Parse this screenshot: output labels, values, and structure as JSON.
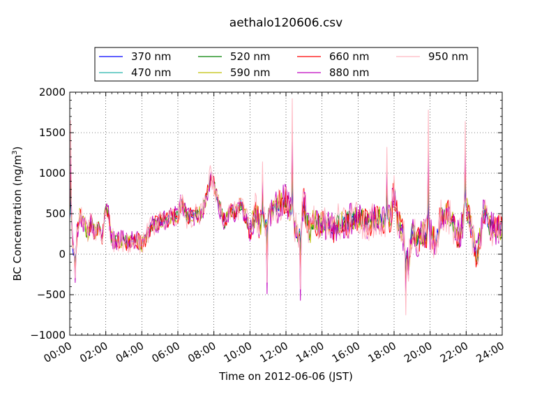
{
  "chart_data": {
    "type": "line",
    "title": "aethalo120606.csv",
    "xlabel": "Time on 2012-06-06 (JST)",
    "ylabel_main": "BC Concentration (ng/m",
    "ylabel_sup": "3",
    "ylabel_end": ")",
    "x_range": [
      "00:00",
      "24:00"
    ],
    "xlim_hours": [
      0,
      24
    ],
    "ylim": [
      -1000,
      2000
    ],
    "x_ticks": [
      "00:00",
      "02:00",
      "04:00",
      "06:00",
      "08:00",
      "10:00",
      "12:00",
      "14:00",
      "16:00",
      "18:00",
      "20:00",
      "22:00",
      "24:00"
    ],
    "y_ticks": [
      -1000,
      -500,
      0,
      500,
      1000,
      1500,
      2000
    ],
    "y_tick_labels": [
      "−1000",
      "−500",
      "0",
      "500",
      "1000",
      "1500",
      "2000"
    ],
    "grid": true,
    "legend_position": "top-center, above plot",
    "series": [
      {
        "name": "370 nm",
        "color": "#0000ff"
      },
      {
        "name": "470 nm",
        "color": "#20b2aa"
      },
      {
        "name": "520 nm",
        "color": "#008000"
      },
      {
        "name": "590 nm",
        "color": "#bfbf00"
      },
      {
        "name": "660 nm",
        "color": "#ff0000"
      },
      {
        "name": "880 nm",
        "color": "#bf00bf"
      },
      {
        "name": "950 nm",
        "color": "#ffb6c1"
      }
    ],
    "base_profile": {
      "x_hours": [
        0,
        0.1,
        0.25,
        0.4,
        0.55,
        0.75,
        1,
        1.2,
        1.4,
        1.6,
        1.8,
        2,
        2.15,
        2.3,
        2.5,
        2.7,
        3,
        3.3,
        3.6,
        4,
        4.2,
        4.5,
        4.8,
        5,
        5.3,
        5.6,
        6,
        6.2,
        6.5,
        7,
        7.3,
        7.6,
        7.8,
        8,
        8.3,
        8.6,
        8.9,
        9.2,
        9.5,
        9.8,
        10,
        10.3,
        10.5,
        10.8,
        11,
        11.3,
        11.6,
        12,
        12.4,
        12.7,
        13,
        13.3,
        13.5,
        13.8,
        14,
        14.3,
        14.6,
        15,
        15.3,
        15.6,
        16,
        16.3,
        16.6,
        17,
        17.3,
        17.6,
        17.8,
        18,
        18.2,
        18.5,
        18.8,
        19,
        19.3,
        19.6,
        20,
        20.3,
        20.6,
        21,
        21.3,
        21.6,
        22,
        22.3,
        22.6,
        23,
        23.3,
        23.6,
        24
      ],
      "y": [
        500,
        250,
        -80,
        250,
        480,
        400,
        250,
        420,
        250,
        350,
        200,
        580,
        480,
        200,
        150,
        180,
        170,
        140,
        190,
        120,
        200,
        330,
        380,
        400,
        420,
        460,
        480,
        650,
        450,
        480,
        500,
        720,
        950,
        860,
        600,
        380,
        550,
        500,
        620,
        450,
        250,
        520,
        380,
        420,
        480,
        550,
        600,
        700,
        400,
        200,
        650,
        250,
        420,
        350,
        400,
        380,
        300,
        420,
        380,
        430,
        450,
        410,
        380,
        460,
        420,
        400,
        450,
        800,
        400,
        250,
        -100,
        300,
        150,
        250,
        250,
        150,
        450,
        500,
        350,
        200,
        600,
        300,
        -50,
        550,
        350,
        300,
        320
      ]
    },
    "spikes": [
      {
        "x_hour": 0.05,
        "value": 1650,
        "series": "950 nm"
      },
      {
        "x_hour": 0.3,
        "value": -350,
        "series": "880 nm"
      },
      {
        "x_hour": 10.7,
        "value": 1140,
        "series": "950 nm"
      },
      {
        "x_hour": 10.95,
        "value": -490,
        "series": "880 nm"
      },
      {
        "x_hour": 12.35,
        "value": 1920,
        "series": "950 nm"
      },
      {
        "x_hour": 12.8,
        "value": -570,
        "series": "880 nm"
      },
      {
        "x_hour": 17.6,
        "value": 1320,
        "series": "950 nm"
      },
      {
        "x_hour": 18.65,
        "value": -750,
        "series": "950 nm"
      },
      {
        "x_hour": 19.9,
        "value": 1780,
        "series": "950 nm"
      },
      {
        "x_hour": 21.95,
        "value": 1640,
        "series": "950 nm"
      }
    ]
  }
}
